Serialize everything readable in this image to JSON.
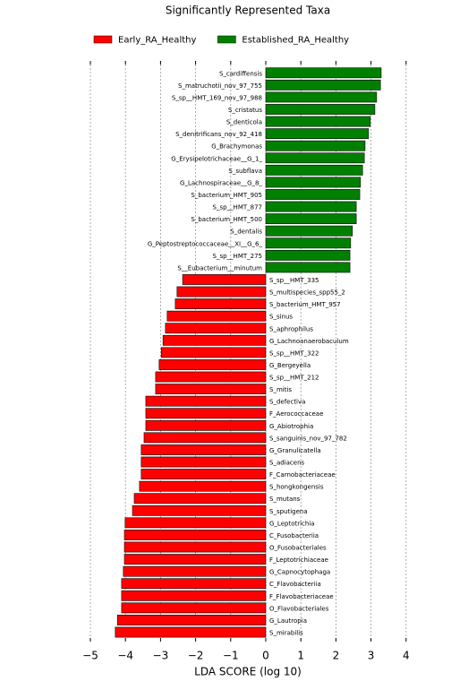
{
  "chart_data": {
    "type": "hbar",
    "title": "Significantly Represented Taxa",
    "x_label": "LDA SCORE (log 10)",
    "categories": [
      "S_cardiffensis",
      "S_matruchotii_nov_97_755",
      "S_sp__HMT_169_nov_97_988",
      "S_cristatus",
      "S_denticola",
      "S_denitrificans_nov_92_418",
      "G_Brachymonas",
      "G_Erysipelotrichaceae__G_1_",
      "S_subflava",
      "G_Lachnospiraceae__G_8_",
      "S_bacterium_HMT_905",
      "S_sp__HMT_877",
      "S_bacterium_HMT_500",
      "S_dentalis",
      "G_Peptostreptococcaceae__XI__G_6_",
      "S_sp__HMT_275",
      "S__Eubacterium__minutum",
      "S_sp__HMT_335",
      "S_multispecies_spp55_2",
      "S_bacterium_HMT_957",
      "S_sinus",
      "S_aphrophilus",
      "G_Lachnoanaerobaculum",
      "S_sp__HMT_322",
      "G_Bergeyella",
      "S_sp__HMT_212",
      "S_mitis",
      "S_defectiva",
      "F_Aerococcaceae",
      "G_Abiotrophia",
      "S_sanguinis_nov_97_782",
      "G_Granulicatella",
      "S_adiacens",
      "F_Carnobacteriaceae",
      "S_hongkongensis",
      "S_mutans",
      "S_sputigena",
      "G_Leptotrichia",
      "C_Fusobacteriia",
      "O_Fusobacteriales",
      "F_Leptotrichiaceae",
      "G_Capnocytophaga",
      "C_Flavobacteriia",
      "F_Flavobacteriaceae",
      "O_Flavobacteriales",
      "G_Lautropia",
      "S_mirabilis"
    ],
    "series": [
      {
        "name": "Early_RA_Healthy",
        "color": "#ff0000",
        "values": [
          null,
          null,
          null,
          null,
          null,
          null,
          null,
          null,
          null,
          null,
          null,
          null,
          null,
          null,
          null,
          null,
          null,
          -2.37,
          -2.53,
          -2.58,
          -2.81,
          -2.86,
          -2.93,
          -2.98,
          -3.04,
          -3.14,
          -3.14,
          -3.42,
          -3.42,
          -3.42,
          -3.47,
          -3.55,
          -3.55,
          -3.55,
          -3.6,
          -3.75,
          -3.8,
          -4.01,
          -4.03,
          -4.03,
          -4.03,
          -4.06,
          -4.11,
          -4.11,
          -4.11,
          -4.23,
          -4.29
        ]
      },
      {
        "name": "Established_RA_Healthy",
        "color": "#008000",
        "values": [
          3.29,
          3.27,
          3.16,
          3.11,
          2.98,
          2.93,
          2.83,
          2.81,
          2.76,
          2.7,
          2.68,
          2.58,
          2.58,
          2.47,
          2.42,
          2.4,
          2.4,
          null,
          null,
          null,
          null,
          null,
          null,
          null,
          null,
          null,
          null,
          null,
          null,
          null,
          null,
          null,
          null,
          null,
          null,
          null,
          null,
          null,
          null,
          null,
          null,
          null,
          null,
          null,
          null,
          null,
          null
        ]
      }
    ],
    "xlim": [
      -5.5,
      4.5
    ],
    "xticks": [
      {
        "value": -5,
        "label": "−5"
      },
      {
        "value": -4,
        "label": "−4"
      },
      {
        "value": -3,
        "label": "−3"
      },
      {
        "value": -2,
        "label": "−2"
      },
      {
        "value": -1,
        "label": "−1"
      },
      0,
      1,
      2,
      3,
      4
    ],
    "grid": true
  }
}
